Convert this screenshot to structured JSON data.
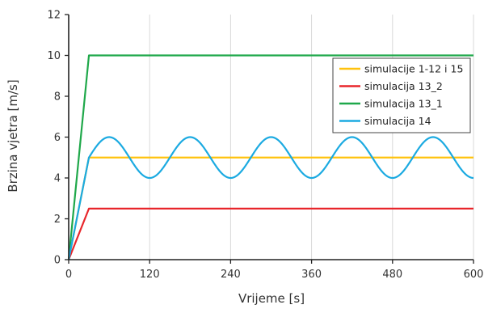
{
  "chart_data": {
    "type": "line",
    "xlabel": "Vrijeme [s]",
    "ylabel": "Brzina vjetra [m/s]",
    "xlim": [
      0,
      600
    ],
    "ylim": [
      0,
      12
    ],
    "xticks": [
      0,
      120,
      240,
      360,
      480,
      600
    ],
    "yticks": [
      0,
      2,
      4,
      6,
      8,
      10,
      12
    ],
    "grid": "vertical",
    "legend_position": "top-right",
    "series": [
      {
        "name": "simulacije 1-12 i 15",
        "color": "#FFC20E",
        "points": [
          [
            0,
            0
          ],
          [
            30,
            5
          ],
          [
            600,
            5
          ]
        ]
      },
      {
        "name": "simulacija 13_2",
        "color": "#E8262B",
        "points": [
          [
            0,
            0
          ],
          [
            30,
            2.5
          ],
          [
            600,
            2.5
          ]
        ]
      },
      {
        "name": "simulacija 13_1",
        "color": "#1FA84A",
        "points": [
          [
            0,
            0
          ],
          [
            30,
            10
          ],
          [
            600,
            10
          ]
        ]
      },
      {
        "name": "simulacija 14",
        "color": "#1BAAE1",
        "ramp": [
          [
            0,
            0
          ],
          [
            30,
            5
          ]
        ],
        "sinusoid": {
          "start": 30,
          "end": 600,
          "mean": 5,
          "amplitude": 1,
          "period": 120
        }
      }
    ]
  }
}
